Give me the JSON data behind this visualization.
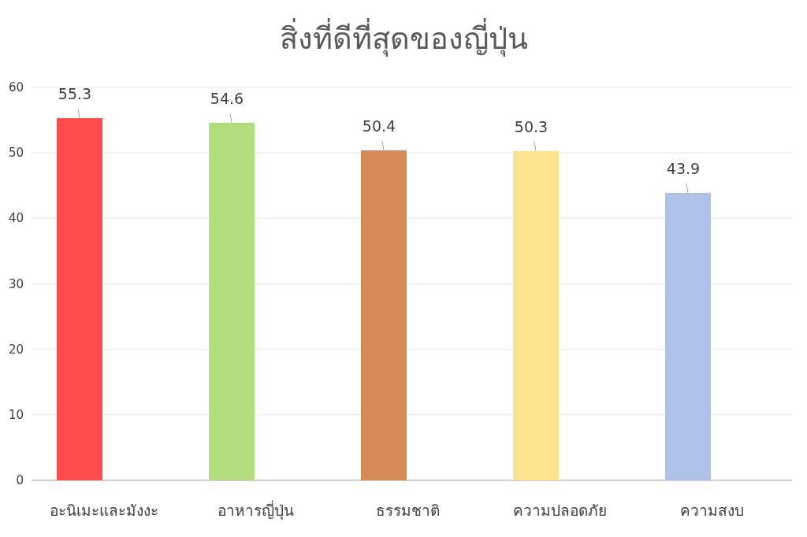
{
  "chart_data": {
    "type": "bar",
    "title": "สิ่งที่ดีที่สุดของญี่ปุ่น",
    "categories": [
      "อะนิเมะและมังงะ",
      "อาหารญี่ปุ่น",
      "ธรรมชาติ",
      "ความปลอดภัย",
      "ความสงบ"
    ],
    "values": [
      55.3,
      54.6,
      50.4,
      50.3,
      43.9
    ],
    "colors": [
      "#ff4b4b",
      "#b2dd7e",
      "#d68a55",
      "#fde28f",
      "#adc2e6"
    ],
    "ylim": [
      0,
      60
    ],
    "yticks": [
      0,
      10,
      20,
      30,
      40,
      50,
      60
    ],
    "grid": "y",
    "data_labels": true
  }
}
